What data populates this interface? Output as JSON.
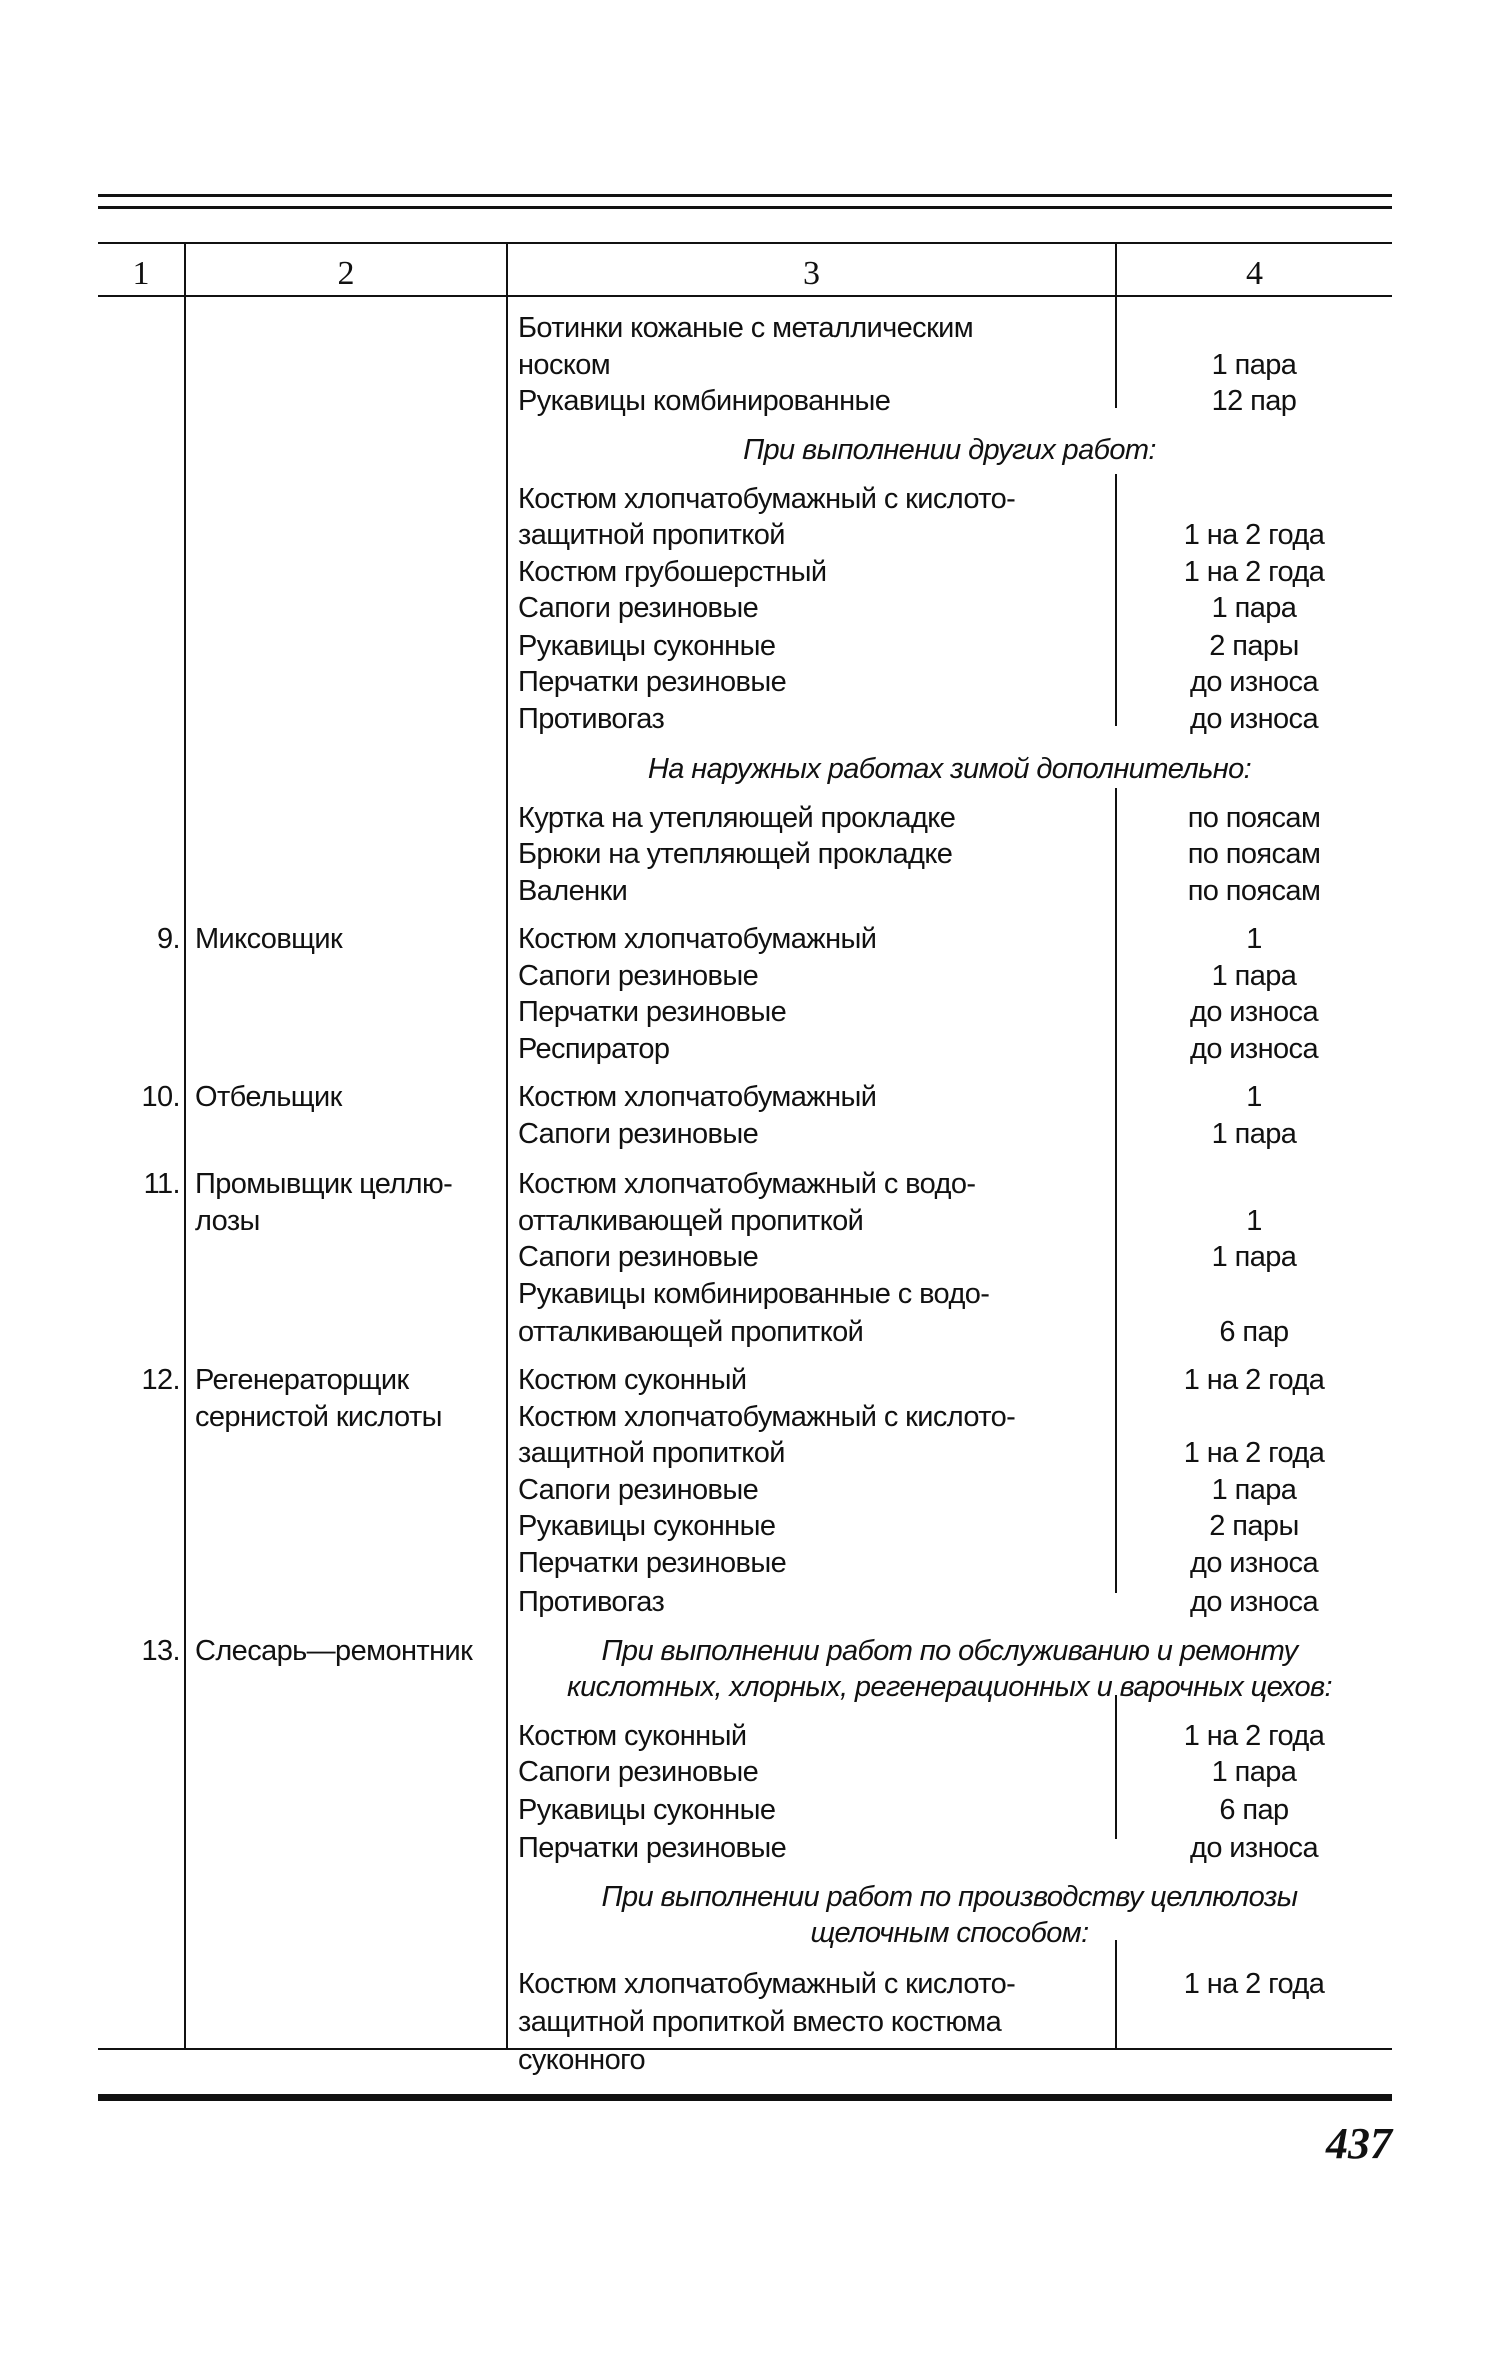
{
  "header": {
    "columns": [
      "1",
      "2",
      "3",
      "4"
    ]
  },
  "lines": [
    {
      "item": "Ботинки кожаные с металлическим"
    },
    {
      "item": "носком",
      "norm": "1 пара"
    },
    {
      "item": "Рукавицы комбинированные",
      "norm": "12 пар"
    },
    {
      "note": "При выполнении других работ:"
    },
    {
      "item": "Костюм хлопчатобумажный с кислото-"
    },
    {
      "item": "защитной пропиткой",
      "norm": "1 на 2 года"
    },
    {
      "item": "Костюм грубошерстный",
      "norm": "1 на 2 года"
    },
    {
      "item": "Сапоги резиновые",
      "norm": "1 пара"
    },
    {
      "item": "Рукавицы суконные",
      "norm": "2 пары"
    },
    {
      "item": "Перчатки резиновые",
      "norm": "до износа"
    },
    {
      "item": "Противогаз",
      "norm": "до износа"
    },
    {
      "note": "На наружных работах зимой дополнительно:"
    },
    {
      "item": "Куртка на утепляющей прокладке",
      "norm": "по поясам"
    },
    {
      "item": "Брюки на утепляющей прокладке",
      "norm": "по поясам"
    },
    {
      "item": "Валенки",
      "norm": "по поясам"
    },
    {
      "num": "9.",
      "job": "Миксовщик",
      "item": "Костюм хлопчатобумажный",
      "norm": "1"
    },
    {
      "item": "Сапоги резиновые",
      "norm": "1 пара"
    },
    {
      "item": "Перчатки резиновые",
      "norm": "до износа"
    },
    {
      "item": "Респиратор",
      "norm": "до износа"
    },
    {
      "num": "10.",
      "job": "Отбельщик",
      "item": "Костюм хлопчатобумажный",
      "norm": "1"
    },
    {
      "item": "Сапоги резиновые",
      "norm": "1 пара"
    },
    {
      "num": "11.",
      "job": "Промывщик целлю-",
      "item": "Костюм хлопчатобумажный с водо-"
    },
    {
      "job": "лозы",
      "item": "отталкивающей пропиткой",
      "norm": "1"
    },
    {
      "item": "Сапоги резиновые",
      "norm": "1 пара"
    },
    {
      "item": "Рукавицы комбинированные с водо-"
    },
    {
      "item": "отталкивающей пропиткой",
      "norm": "6 пар"
    },
    {
      "num": "12.",
      "job": "Регенераторщик",
      "item": "Костюм суконный",
      "norm": "1 на 2 года"
    },
    {
      "job": "сернистой кислоты",
      "item": "Костюм хлопчатобумажный с кислото-"
    },
    {
      "item": "защитной пропиткой",
      "norm": "1 на 2 года"
    },
    {
      "item": "Сапоги резиновые",
      "norm": "1 пара"
    },
    {
      "item": "Рукавицы суконные",
      "norm": "2 пары"
    },
    {
      "item": "Перчатки резиновые",
      "norm": "до износа"
    },
    {
      "item": "Противогаз",
      "norm": "до износа"
    },
    {
      "num": "13.",
      "job": "Слесарь—ремонтник",
      "note": "При выполнении работ по обслуживанию и ремонту"
    },
    {
      "note": "кислотных, хлорных, регенерационных и варочных цехов:"
    },
    {
      "item": "Костюм суконный",
      "norm": "1 на 2 года"
    },
    {
      "item": "Сапоги резиновые",
      "norm": "1 пара"
    },
    {
      "item": "Рукавицы суконные",
      "norm": "6 пар"
    },
    {
      "item": "Перчатки резиновые",
      "norm": "до износа"
    },
    {
      "note": "При выполнении работ по производству целлюлозы"
    },
    {
      "note": "щелочным способом:"
    },
    {
      "item": "Костюм хлопчатобумажный с кислото-",
      "norm": "1 на 2 года"
    },
    {
      "item": "защитной пропиткой вместо костюма"
    },
    {
      "item": "суконного"
    }
  ],
  "page_number": "437"
}
